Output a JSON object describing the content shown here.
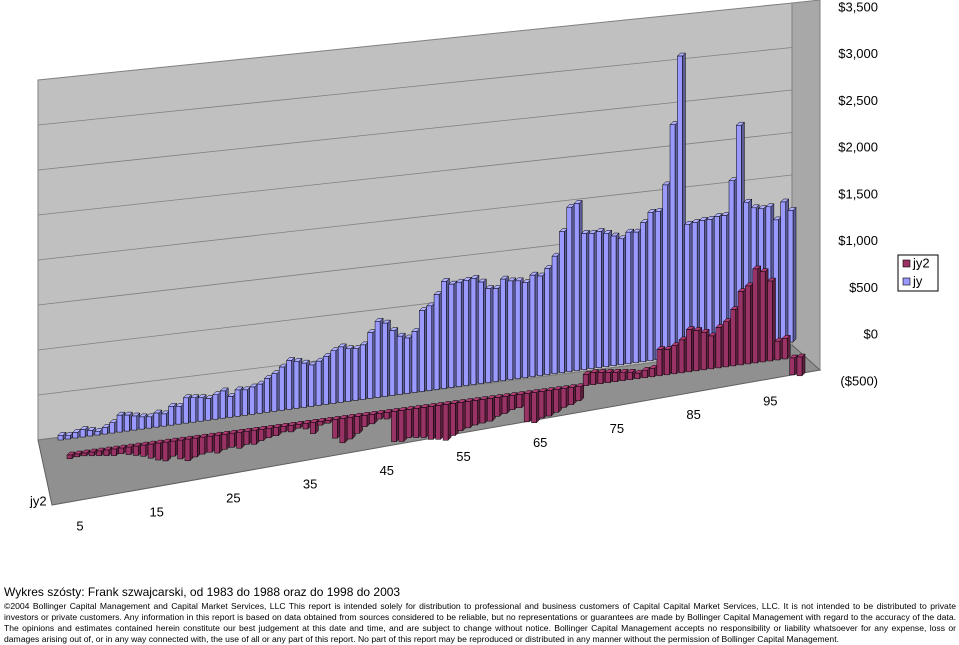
{
  "chart_data": {
    "type": "bar3d",
    "title": "Wykres szósty: Frank szwajcarski, od 1983 do 1988 oraz do 1998 do 2003",
    "footnote": "©2004 Bollinger Capital Management and Capital Market Services, LLC This report is intended solely for distribution to professional and business customers of Capital Capital Market Services, LLC. It is not intended to be distributed to private investors or private customers. Any information in this report is based on data obtained from sources considered to be reliable, but no representations or guarantees are made by Bollinger Capital Management with regard to the accuracy of the data. The opinions and estimates contained herein constitute our best judgement at this date and time, and are subject to change without notice. Bollinger Capital Management accepts no responsibility or liability whatsoever for any expense, loss or damages arising out of, or in any way connected with, the use of all or any part of this report. No part of this report may be reproduced or distributed in any manner without the permission of Bollinger Capital Management.",
    "categories": [
      null,
      null,
      null,
      null,
      "5",
      null,
      null,
      null,
      null,
      null,
      null,
      null,
      null,
      null,
      "15",
      null,
      null,
      null,
      null,
      null,
      null,
      null,
      null,
      null,
      "25",
      null,
      null,
      null,
      null,
      null,
      null,
      null,
      null,
      null,
      "35",
      null,
      null,
      null,
      null,
      null,
      null,
      null,
      null,
      null,
      "45",
      null,
      null,
      null,
      null,
      null,
      null,
      null,
      null,
      null,
      "55",
      null,
      null,
      null,
      null,
      null,
      null,
      null,
      null,
      null,
      "65",
      null,
      null,
      null,
      null,
      null,
      null,
      null,
      null,
      null,
      "75",
      null,
      null,
      null,
      null,
      null,
      null,
      null,
      null,
      null,
      "85",
      null,
      null,
      null,
      null,
      null,
      null,
      null,
      null,
      null,
      "95",
      null,
      null,
      null,
      null,
      null
    ],
    "series": [
      {
        "name": "jy2",
        "color": "#993366",
        "values": [
          -40,
          -30,
          -30,
          -40,
          -50,
          -60,
          -70,
          -60,
          -80,
          -100,
          -120,
          -150,
          -180,
          -200,
          -160,
          -200,
          -230,
          -200,
          -180,
          -170,
          -190,
          -160,
          -150,
          -170,
          -140,
          -150,
          -120,
          -100,
          -90,
          -60,
          -70,
          -40,
          -60,
          -120,
          -40,
          -30,
          -200,
          -260,
          -230,
          -180,
          -120,
          -100,
          -60,
          -70,
          -320,
          -330,
          -300,
          -310,
          -320,
          -350,
          -360,
          -380,
          -340,
          -300,
          -280,
          -260,
          -250,
          -240,
          -200,
          -180,
          -150,
          -140,
          -300,
          -320,
          -280,
          -270,
          -240,
          -200,
          -180,
          -150,
          120,
          130,
          120,
          110,
          100,
          90,
          80,
          60,
          80,
          90,
          280,
          270,
          300,
          350,
          450,
          430,
          400,
          350,
          430,
          480,
          600,
          780,
          830,
          1000,
          960,
          850,
          200,
          220,
          -180,
          -200
        ]
      },
      {
        "name": "jy",
        "color": "#9999ff",
        "values": [
          50,
          40,
          60,
          80,
          60,
          40,
          70,
          110,
          180,
          170,
          150,
          130,
          120,
          150,
          130,
          200,
          190,
          270,
          260,
          250,
          230,
          260,
          290,
          220,
          280,
          270,
          290,
          310,
          360,
          400,
          460,
          520,
          500,
          470,
          440,
          470,
          510,
          560,
          590,
          560,
          550,
          580,
          700,
          810,
          780,
          690,
          620,
          590,
          650,
          860,
          900,
          1010,
          1140,
          1100,
          1110,
          1120,
          1130,
          1080,
          1000,
          990,
          1080,
          1050,
          1040,
          1010,
          1080,
          1060,
          1130,
          1250,
          1500,
          1750,
          1780,
          1450,
          1440,
          1450,
          1420,
          1380,
          1340,
          1400,
          1390,
          1480,
          1580,
          1580,
          1850,
          2480,
          3200,
          1400,
          1410,
          1420,
          1420,
          1440,
          1440,
          1800,
          2380,
          1550,
          1480,
          1460,
          1470,
          1320,
          1500,
          1400
        ]
      }
    ],
    "ylim": [
      -500,
      3500
    ],
    "yticks": [
      {
        "value": -500,
        "label": "($500)"
      },
      {
        "value": 0,
        "label": "$0"
      },
      {
        "value": 500,
        "label": "$500"
      },
      {
        "value": 1000,
        "label": "$1,000"
      },
      {
        "value": 1500,
        "label": "$1,500"
      },
      {
        "value": 2000,
        "label": "$2,000"
      },
      {
        "value": 2500,
        "label": "$2,500"
      },
      {
        "value": 3000,
        "label": "$3,000"
      },
      {
        "value": 3500,
        "label": "$3,500"
      }
    ],
    "grid": true
  }
}
